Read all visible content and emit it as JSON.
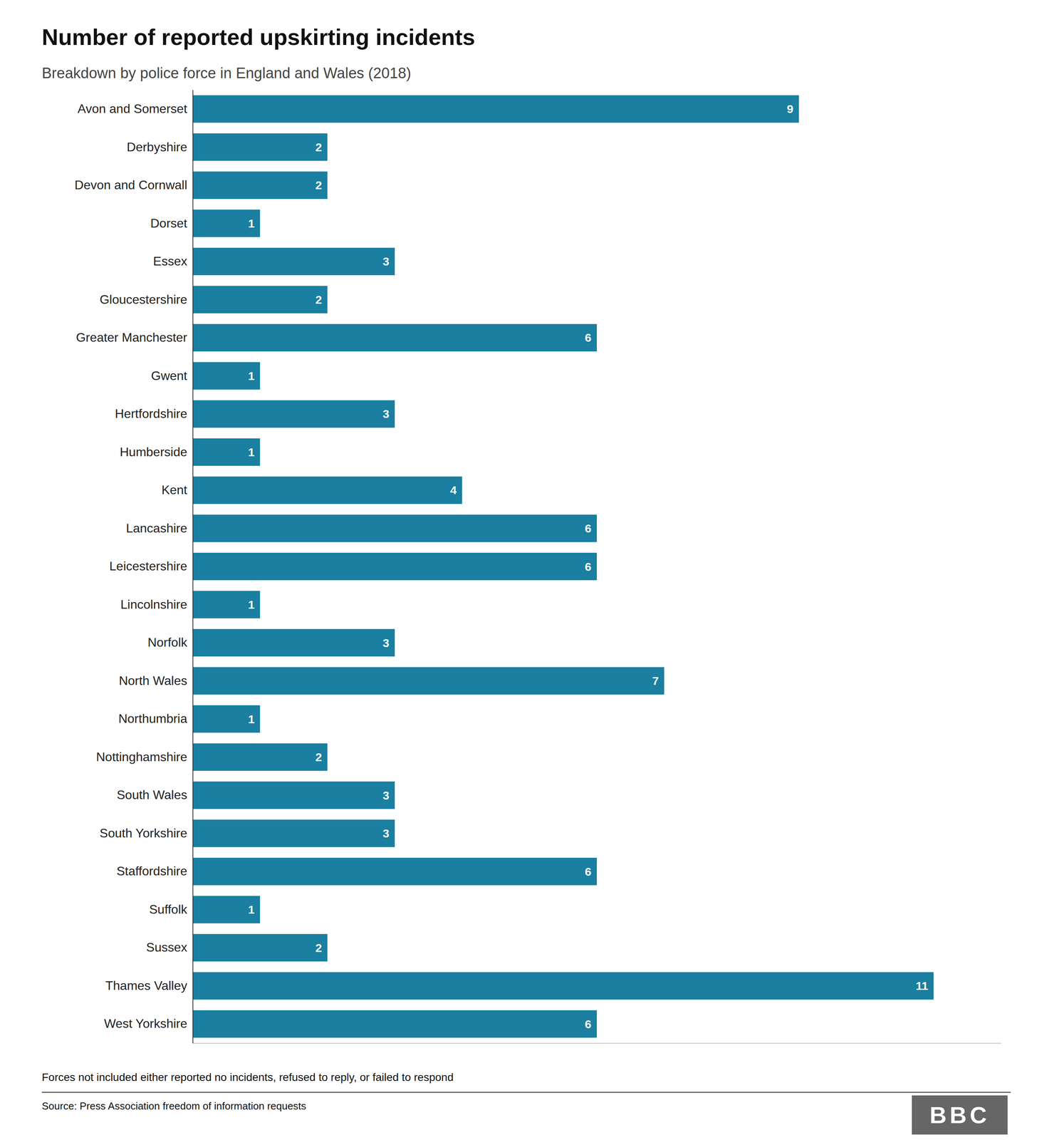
{
  "chart_data": {
    "type": "bar",
    "orientation": "horizontal",
    "title": "Number of reported upskirting incidents",
    "subtitle": "Breakdown by police force in England and Wales (2018)",
    "footnote": "Forces not included either reported no incidents, refused to reply, or failed to respond",
    "source": "Source: Press Association freedom of information requests",
    "annotations": [
      "BBC"
    ],
    "categories": [
      "West Yorkshire",
      "Thames Valley",
      "Sussex",
      "Suffolk",
      "Staffordshire",
      "South Yorkshire",
      "South Wales",
      "Nottinghamshire",
      "Northumbria",
      "North Wales",
      "Norfolk",
      "Lincolnshire",
      "Leicestershire",
      "Lancashire",
      "Kent",
      "Humberside",
      "Hertfordshire",
      "Gwent",
      "Greater Manchester",
      "Gloucestershire",
      "Essex",
      "Dorset",
      "Devon and Cornwall",
      "Derbyshire",
      "Avon and Somerset"
    ],
    "values": [
      6,
      11,
      2,
      1,
      6,
      3,
      3,
      2,
      1,
      7,
      3,
      1,
      6,
      6,
      4,
      1,
      3,
      1,
      6,
      2,
      3,
      1,
      2,
      2,
      9
    ],
    "color": "#1a7fa0",
    "xlim": [
      0,
      12
    ],
    "data_labels": true,
    "tick_labels": "y",
    "grid": false
  }
}
